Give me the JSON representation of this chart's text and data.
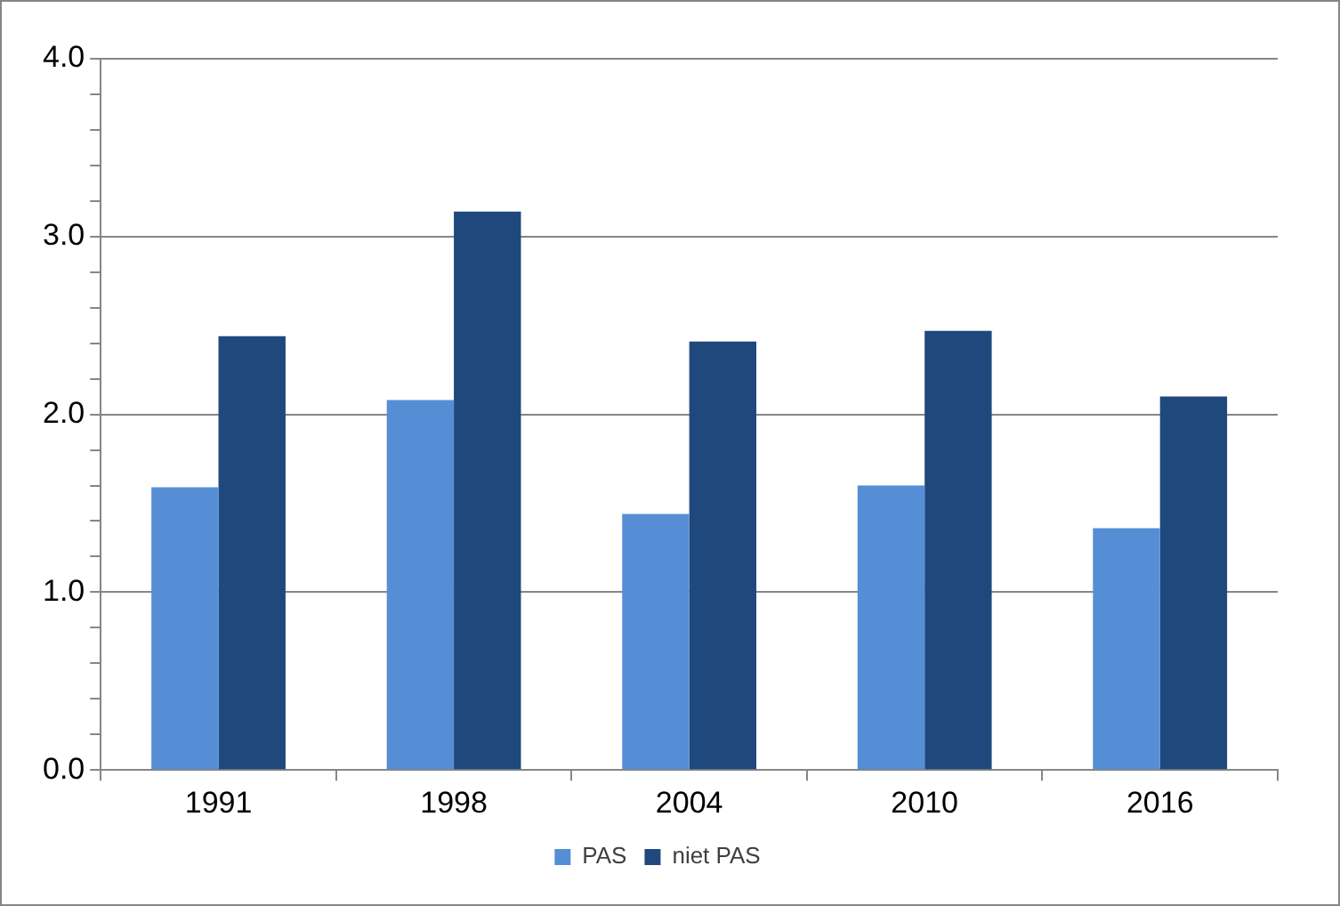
{
  "chart_data": {
    "type": "bar",
    "categories": [
      "1991",
      "1998",
      "2004",
      "2010",
      "2016"
    ],
    "series": [
      {
        "name": "PAS",
        "color": "#558ed5",
        "values": [
          1.59,
          2.08,
          1.44,
          1.6,
          1.36
        ]
      },
      {
        "name": "niet PAS",
        "color": "#1f497d",
        "values": [
          2.44,
          3.14,
          2.41,
          2.47,
          2.1
        ]
      }
    ],
    "ylim": [
      0,
      4
    ],
    "yticks": [
      {
        "value": 0,
        "label": "0.0"
      },
      {
        "value": 0.2,
        "label": null
      },
      {
        "value": 0.4,
        "label": null
      },
      {
        "value": 0.6,
        "label": null
      },
      {
        "value": 0.8,
        "label": null
      },
      {
        "value": 1,
        "label": "1.0"
      },
      {
        "value": 1.2,
        "label": null
      },
      {
        "value": 1.4,
        "label": null
      },
      {
        "value": 1.6,
        "label": null
      },
      {
        "value": 1.8,
        "label": null
      },
      {
        "value": 2,
        "label": "2.0"
      },
      {
        "value": 2.2,
        "label": null
      },
      {
        "value": 2.4,
        "label": null
      },
      {
        "value": 2.6,
        "label": null
      },
      {
        "value": 2.8,
        "label": null
      },
      {
        "value": 3,
        "label": "3.0"
      },
      {
        "value": 3.2,
        "label": null
      },
      {
        "value": 3.4,
        "label": null
      },
      {
        "value": 3.6,
        "label": null
      },
      {
        "value": 3.8,
        "label": null
      },
      {
        "value": 4,
        "label": "4.0"
      }
    ],
    "grid": "y",
    "legend": "bottom"
  }
}
